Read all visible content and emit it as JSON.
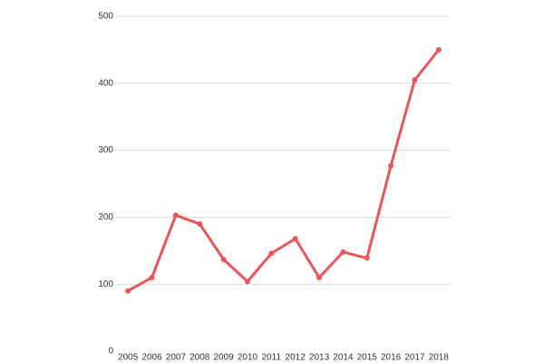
{
  "chart_data": {
    "type": "line",
    "categories": [
      "2005",
      "2006",
      "2007",
      "2008",
      "2009",
      "2010",
      "2011",
      "2012",
      "2013",
      "2014",
      "2015",
      "2016",
      "2017",
      "2018"
    ],
    "series": [
      {
        "color": "#e8555a",
        "values": [
          90,
          110,
          203,
          190,
          137,
          104,
          146,
          168,
          110,
          148,
          139,
          277,
          405,
          450
        ]
      }
    ],
    "ylim": [
      0,
      500
    ],
    "yticks": [
      0,
      100,
      200,
      300,
      400,
      500
    ],
    "grid": true
  }
}
